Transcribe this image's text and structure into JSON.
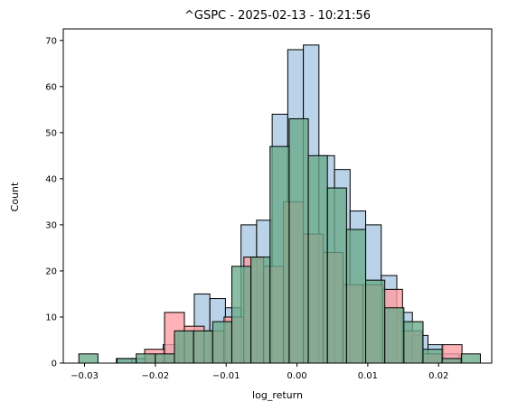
{
  "chart_data": {
    "type": "histogram",
    "title": "^GSPC - 2025-02-13 - 10:21:56",
    "xlabel": "log_return",
    "ylabel": "Count",
    "xlim": [
      -0.033,
      0.0275
    ],
    "ylim": [
      0,
      72.5
    ],
    "xticks": [
      -0.03,
      -0.02,
      -0.01,
      0.0,
      0.01,
      0.02
    ],
    "xtick_labels": [
      "−0.03",
      "−0.02",
      "−0.01",
      "0.00",
      "0.01",
      "0.02"
    ],
    "yticks": [
      0,
      10,
      20,
      30,
      40,
      50,
      60,
      70
    ],
    "grid": false,
    "series": [
      {
        "color": "#a9c8e3",
        "bars": [
          {
            "x0": -0.0255,
            "x1": -0.0233,
            "count": 1
          },
          {
            "x0": -0.0233,
            "x1": -0.0211,
            "count": 1
          },
          {
            "x0": -0.0189,
            "x1": -0.0167,
            "count": 4
          },
          {
            "x0": -0.0167,
            "x1": -0.0145,
            "count": 7
          },
          {
            "x0": -0.0145,
            "x1": -0.0123,
            "count": 15
          },
          {
            "x0": -0.0123,
            "x1": -0.0101,
            "count": 14
          },
          {
            "x0": -0.0101,
            "x1": -0.0079,
            "count": 12
          },
          {
            "x0": -0.0079,
            "x1": -0.0057,
            "count": 30
          },
          {
            "x0": -0.0057,
            "x1": -0.0035,
            "count": 31
          },
          {
            "x0": -0.0035,
            "x1": -0.0013,
            "count": 54
          },
          {
            "x0": -0.0013,
            "x1": 0.0009,
            "count": 68
          },
          {
            "x0": 0.0009,
            "x1": 0.0031,
            "count": 69
          },
          {
            "x0": 0.0031,
            "x1": 0.0053,
            "count": 45
          },
          {
            "x0": 0.0053,
            "x1": 0.0075,
            "count": 42
          },
          {
            "x0": 0.0075,
            "x1": 0.0097,
            "count": 33
          },
          {
            "x0": 0.0097,
            "x1": 0.0119,
            "count": 30
          },
          {
            "x0": 0.0119,
            "x1": 0.0141,
            "count": 19
          },
          {
            "x0": 0.0141,
            "x1": 0.0163,
            "count": 11
          },
          {
            "x0": 0.0163,
            "x1": 0.0185,
            "count": 6
          },
          {
            "x0": 0.0185,
            "x1": 0.0207,
            "count": 4
          },
          {
            "x0": 0.0207,
            "x1": 0.0229,
            "count": 2
          }
        ]
      },
      {
        "color": "#ff9ea2",
        "bars": [
          {
            "x0": -0.0215,
            "x1": -0.0187,
            "count": 3
          },
          {
            "x0": -0.0187,
            "x1": -0.0159,
            "count": 11
          },
          {
            "x0": -0.0159,
            "x1": -0.0131,
            "count": 8
          },
          {
            "x0": -0.0131,
            "x1": -0.0103,
            "count": 7
          },
          {
            "x0": -0.0103,
            "x1": -0.0075,
            "count": 10
          },
          {
            "x0": -0.0075,
            "x1": -0.0047,
            "count": 23
          },
          {
            "x0": -0.0047,
            "x1": -0.0019,
            "count": 21
          },
          {
            "x0": -0.0019,
            "x1": 0.0009,
            "count": 35
          },
          {
            "x0": 0.0009,
            "x1": 0.0037,
            "count": 28
          },
          {
            "x0": 0.0037,
            "x1": 0.0065,
            "count": 24
          },
          {
            "x0": 0.0065,
            "x1": 0.0093,
            "count": 17
          },
          {
            "x0": 0.0093,
            "x1": 0.0121,
            "count": 17
          },
          {
            "x0": 0.0121,
            "x1": 0.0149,
            "count": 16
          },
          {
            "x0": 0.0149,
            "x1": 0.0177,
            "count": 7
          },
          {
            "x0": 0.0177,
            "x1": 0.0205,
            "count": 2
          },
          {
            "x0": 0.0205,
            "x1": 0.0233,
            "count": 4
          }
        ]
      },
      {
        "color": "#6aaa8a",
        "bars": [
          {
            "x0": -0.0308,
            "x1": -0.0281,
            "count": 2
          },
          {
            "x0": -0.0254,
            "x1": -0.0227,
            "count": 1
          },
          {
            "x0": -0.0227,
            "x1": -0.02,
            "count": 2
          },
          {
            "x0": -0.02,
            "x1": -0.0173,
            "count": 2
          },
          {
            "x0": -0.0173,
            "x1": -0.0146,
            "count": 7
          },
          {
            "x0": -0.0146,
            "x1": -0.0119,
            "count": 7
          },
          {
            "x0": -0.0119,
            "x1": -0.0092,
            "count": 9
          },
          {
            "x0": -0.0092,
            "x1": -0.0065,
            "count": 21
          },
          {
            "x0": -0.0065,
            "x1": -0.0038,
            "count": 23
          },
          {
            "x0": -0.0038,
            "x1": -0.0011,
            "count": 47
          },
          {
            "x0": -0.0011,
            "x1": 0.0016,
            "count": 53
          },
          {
            "x0": 0.0016,
            "x1": 0.0043,
            "count": 45
          },
          {
            "x0": 0.0043,
            "x1": 0.007,
            "count": 38
          },
          {
            "x0": 0.007,
            "x1": 0.0097,
            "count": 29
          },
          {
            "x0": 0.0097,
            "x1": 0.0124,
            "count": 18
          },
          {
            "x0": 0.0124,
            "x1": 0.0151,
            "count": 12
          },
          {
            "x0": 0.0151,
            "x1": 0.0178,
            "count": 9
          },
          {
            "x0": 0.0178,
            "x1": 0.0205,
            "count": 3
          },
          {
            "x0": 0.0205,
            "x1": 0.0232,
            "count": 1
          },
          {
            "x0": 0.0232,
            "x1": 0.0259,
            "count": 2
          }
        ]
      }
    ]
  }
}
